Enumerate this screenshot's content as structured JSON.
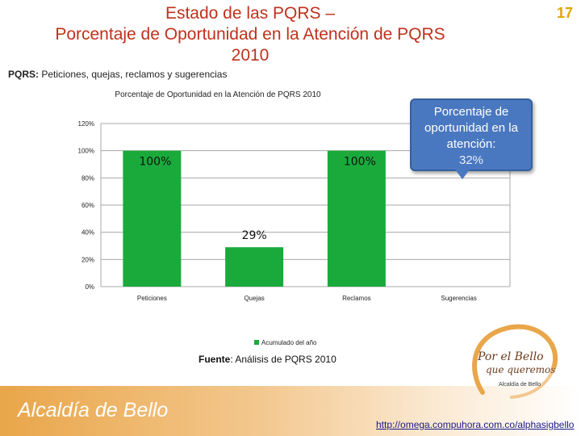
{
  "page": {
    "number": "17",
    "title_lines": [
      "Estado de las PQRS –",
      "Porcentaje de Oportunidad en la Atención de PQRS",
      "2010"
    ],
    "pqrs_label": "PQRS:",
    "pqrs_text": " Peticiones, quejas, reclamos y sugerencias",
    "source_label": "Fuente",
    "source_text": ": Análisis de PQRS 2010",
    "footer_brand": "Alcaldía de Bello",
    "url": "http://omega.compuhora.com.co/alphasigbello"
  },
  "callout": {
    "line1": "Porcentaje de",
    "line2": "oportunidad en la",
    "line3": "atención:",
    "value": "32%"
  },
  "logo": {
    "line1": "Por el Bello",
    "line2": "que queremos",
    "line3": "Alcaldía de Bello",
    "icon": "heart-swirl-logo"
  },
  "colors": {
    "title": "#c0311c",
    "bar": "#1aaa3c",
    "callout": "#4a78c0",
    "footer": "#e9a64a"
  },
  "chart_data": {
    "type": "bar",
    "title": "Porcentaje de Oportunidad en la Atención de PQRS 2010",
    "categories": [
      "Peticiones",
      "Quejas",
      "Reclamos",
      "Sugerencias"
    ],
    "series": [
      {
        "name": "Acumulado del año",
        "values": [
          100,
          29,
          100,
          null
        ],
        "labels": [
          "100%",
          "29%",
          "100%",
          ""
        ]
      }
    ],
    "ylim": [
      0,
      120
    ],
    "yticks": [
      0,
      20,
      40,
      60,
      80,
      100,
      120
    ],
    "ytick_labels": [
      "0%",
      "20%",
      "40%",
      "60%",
      "80%",
      "100%",
      "120%"
    ],
    "grid": true,
    "legend": "bottom",
    "xlabel": "",
    "ylabel": ""
  }
}
